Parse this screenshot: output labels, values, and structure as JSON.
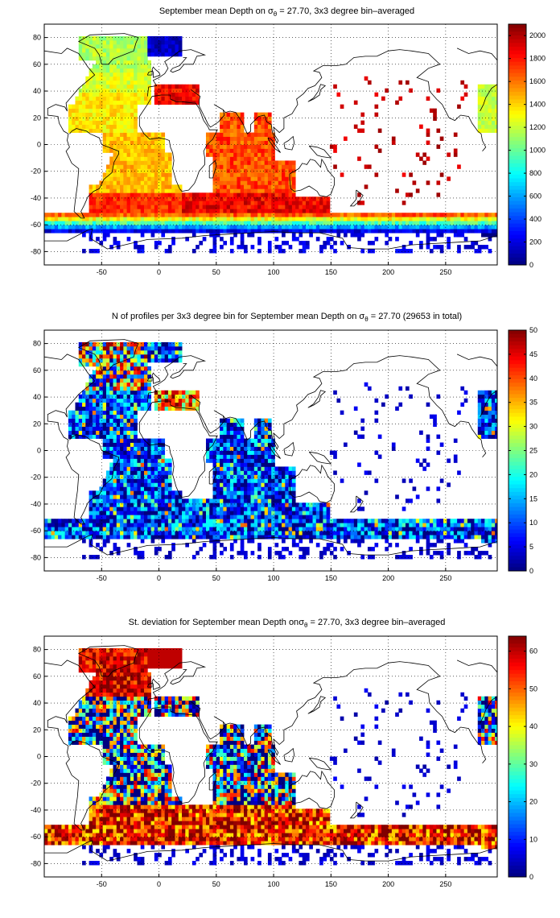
{
  "chart_data": [
    {
      "type": "heatmap",
      "title_pre": "September mean Depth on ",
      "title_sigma": "σ",
      "title_sub": "θ",
      "title_post": " = 27.70, 3x3 degree bin–averaged",
      "x_ticks": [
        -50,
        0,
        50,
        100,
        150,
        200,
        250
      ],
      "y_ticks": [
        80,
        60,
        40,
        20,
        0,
        -20,
        -40,
        -60,
        -80
      ],
      "xlim": [
        -100,
        295
      ],
      "ylim": [
        -90,
        90
      ],
      "colorbar_ticks": [
        0,
        200,
        400,
        600,
        800,
        1000,
        1200,
        1400,
        1600,
        1800,
        2000
      ],
      "clim": [
        0,
        2100
      ],
      "colormap": "jet",
      "grid": true
    },
    {
      "type": "heatmap",
      "title_pre": "N of profiles per 3x3 degree bin for September mean Depth on ",
      "title_sigma": "σ",
      "title_sub": "θ",
      "title_post": " = 27.70 (29653 in total)",
      "x_ticks": [
        -50,
        0,
        50,
        100,
        150,
        200,
        250
      ],
      "y_ticks": [
        80,
        60,
        40,
        20,
        0,
        -20,
        -40,
        -60,
        -80
      ],
      "xlim": [
        -100,
        295
      ],
      "ylim": [
        -90,
        90
      ],
      "colorbar_ticks": [
        0,
        5,
        10,
        15,
        20,
        25,
        30,
        35,
        40,
        45,
        50
      ],
      "clim": [
        0,
        50
      ],
      "colormap": "jet",
      "grid": true
    },
    {
      "type": "heatmap",
      "title_pre": "St. deviation for September mean Depth on",
      "title_sigma": "σ",
      "title_sub": "θ",
      "title_post": " = 27.70, 3x3 degree bin–averaged",
      "x_ticks": [
        -50,
        0,
        50,
        100,
        150,
        200,
        250
      ],
      "y_ticks": [
        80,
        60,
        40,
        20,
        0,
        -20,
        -40,
        -60,
        -80
      ],
      "xlim": [
        -100,
        295
      ],
      "ylim": [
        -90,
        90
      ],
      "colorbar_ticks": [
        0,
        10,
        20,
        30,
        40,
        50,
        60
      ],
      "clim": [
        0,
        64
      ],
      "colormap": "jet",
      "grid": true
    }
  ]
}
